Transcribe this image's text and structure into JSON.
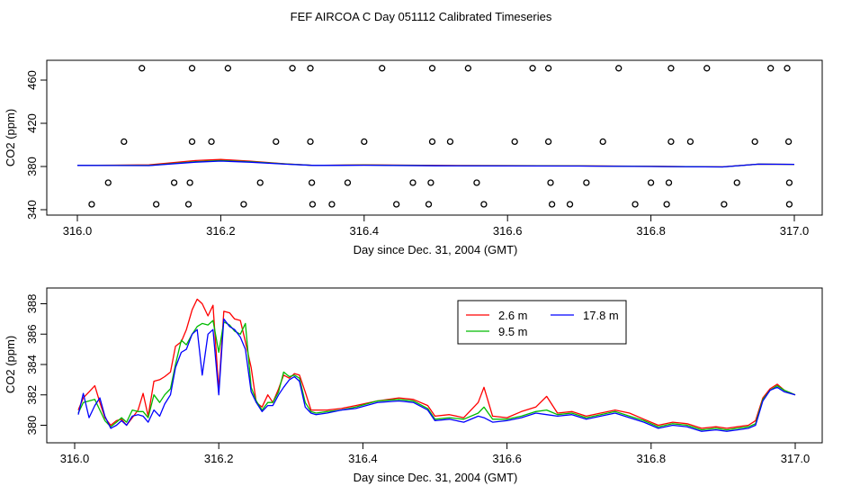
{
  "figure_title": "FEF AIRCOA C  Day 051112  Calibrated Timeseries",
  "chart_data": [
    {
      "type": "scatter+line",
      "title": "",
      "xlabel": "Day since Dec. 31, 2004 (GMT)",
      "ylabel": "CO2 (ppm)",
      "xlim": [
        316.0,
        317.0
      ],
      "ylim": [
        340,
        475
      ],
      "x_ticks": [
        316.0,
        316.2,
        316.4,
        316.6,
        316.8,
        317.0
      ],
      "x_tick_labels": [
        "316.0",
        "316.2",
        "316.4",
        "316.6",
        "316.8",
        "317.0"
      ],
      "y_ticks": [
        340,
        380,
        420,
        460
      ],
      "y_tick_labels": [
        "340",
        "380",
        "420",
        "460"
      ],
      "legend": false,
      "calibration_points": {
        "marker": "open-circle",
        "x": [
          316.09,
          316.16,
          316.21,
          316.3,
          316.325,
          316.425,
          316.495,
          316.545,
          316.635,
          316.657,
          316.755,
          316.828,
          316.878,
          316.967,
          316.99,
          316.065,
          316.16,
          316.187,
          316.277,
          316.325,
          316.4,
          316.495,
          316.52,
          316.61,
          316.657,
          316.733,
          316.828,
          316.855,
          316.945,
          316.992,
          316.043,
          316.135,
          316.157,
          316.255,
          316.327,
          316.377,
          316.468,
          316.493,
          316.557,
          316.66,
          316.71,
          316.8,
          316.825,
          316.92,
          316.993,
          316.02,
          316.11,
          316.155,
          316.232,
          316.328,
          316.355,
          316.445,
          316.49,
          316.567,
          316.662,
          316.687,
          316.778,
          316.822,
          316.902,
          316.993
        ],
        "y": [
          471,
          471,
          471,
          471,
          471,
          471,
          471,
          471,
          471,
          471,
          471,
          471,
          471,
          471,
          471,
          403,
          403,
          403,
          403,
          403,
          403,
          403,
          403,
          403,
          403,
          403,
          403,
          403,
          403,
          403,
          365,
          365,
          365,
          365,
          365,
          365,
          365,
          365,
          365,
          365,
          365,
          365,
          365,
          365,
          365,
          345,
          345,
          345,
          345,
          345,
          345,
          345,
          345,
          345,
          345,
          345,
          345,
          345,
          345,
          345
        ]
      },
      "series": [
        {
          "name": "2.6 m",
          "color": "#ff0000",
          "x": [
            316.0,
            316.1,
            316.165,
            316.2,
            316.24,
            316.29,
            316.33,
            316.4,
            316.5,
            316.6,
            316.7,
            316.8,
            316.9,
            316.95,
            317.0
          ],
          "values": [
            381.0,
            381.5,
            385.5,
            386.5,
            385.0,
            382.5,
            381.0,
            381.5,
            381.0,
            380.8,
            380.6,
            380.2,
            379.7,
            382.2,
            382.0
          ]
        },
        {
          "name": "9.5 m",
          "color": "#00bb00",
          "x": [
            316.0,
            316.1,
            316.165,
            316.2,
            316.24,
            316.29,
            316.33,
            316.4,
            316.5,
            316.6,
            316.7,
            316.8,
            316.9,
            316.95,
            317.0
          ],
          "values": [
            381.0,
            381.0,
            384.5,
            385.5,
            384.5,
            382.3,
            381.0,
            381.3,
            380.8,
            380.6,
            380.5,
            380.1,
            379.6,
            382.2,
            382.0
          ]
        },
        {
          "name": "17.8 m",
          "color": "#0000ff",
          "x": [
            316.0,
            316.1,
            316.165,
            316.2,
            316.24,
            316.29,
            316.33,
            316.4,
            316.5,
            316.6,
            316.7,
            316.8,
            316.9,
            316.95,
            317.0
          ],
          "values": [
            381.0,
            380.8,
            384.0,
            385.0,
            384.0,
            382.2,
            381.0,
            381.2,
            380.7,
            380.5,
            380.4,
            380.0,
            379.6,
            382.2,
            382.0
          ]
        }
      ]
    },
    {
      "type": "line",
      "title": "",
      "xlabel": "Day since Dec. 31, 2004 (GMT)",
      "ylabel": "CO2 (ppm)",
      "xlim": [
        316.0,
        317.0
      ],
      "ylim": [
        379.2,
        388.8
      ],
      "x_ticks": [
        316.0,
        316.2,
        316.4,
        316.6,
        316.8,
        317.0
      ],
      "x_tick_labels": [
        "316.0",
        "316.2",
        "316.4",
        "316.6",
        "316.8",
        "317.0"
      ],
      "y_ticks": [
        380,
        382,
        384,
        386,
        388
      ],
      "y_tick_labels": [
        "380",
        "382",
        "384",
        "386",
        "388"
      ],
      "legend": true,
      "legend_position": "top-right",
      "series": [
        {
          "name": "2.6 m",
          "color": "#ff0000",
          "x": [
            316.005,
            316.012,
            316.02,
            316.028,
            316.035,
            316.042,
            316.05,
            316.058,
            316.065,
            316.072,
            316.08,
            316.088,
            316.095,
            316.102,
            316.11,
            316.118,
            316.125,
            316.133,
            316.14,
            316.148,
            316.155,
            316.163,
            316.17,
            316.177,
            316.185,
            316.192,
            316.2,
            316.207,
            316.215,
            316.222,
            316.23,
            316.237,
            316.245,
            316.252,
            316.26,
            316.268,
            316.275,
            316.283,
            316.29,
            316.298,
            316.305,
            316.312,
            316.32,
            316.328,
            316.335,
            316.35,
            316.37,
            316.39,
            316.42,
            316.45,
            316.47,
            316.49,
            316.5,
            316.52,
            316.54,
            316.56,
            316.568,
            316.58,
            316.6,
            316.62,
            316.64,
            316.655,
            316.67,
            316.69,
            316.71,
            316.73,
            316.75,
            316.77,
            316.79,
            316.81,
            316.83,
            316.85,
            316.87,
            316.89,
            316.905,
            316.92,
            316.935,
            316.945,
            316.955,
            316.965,
            316.975,
            316.985,
            317.0
          ],
          "values": [
            381.0,
            381.8,
            382.2,
            382.6,
            381.5,
            380.5,
            380.0,
            380.3,
            380.4,
            380.0,
            380.5,
            381.0,
            382.1,
            380.6,
            382.9,
            383.0,
            383.2,
            383.5,
            385.2,
            385.5,
            386.3,
            387.6,
            388.3,
            388.0,
            387.2,
            387.9,
            382.3,
            387.5,
            387.4,
            387.0,
            386.9,
            385.5,
            383.8,
            381.5,
            381.2,
            382.0,
            381.5,
            382.4,
            383.3,
            383.1,
            383.4,
            383.3,
            382.2,
            381.0,
            381.0,
            381.0,
            381.1,
            381.3,
            381.6,
            381.8,
            381.7,
            381.3,
            380.6,
            380.7,
            380.5,
            381.5,
            382.5,
            380.6,
            380.5,
            380.9,
            381.2,
            381.9,
            380.8,
            380.9,
            380.6,
            380.8,
            381.0,
            380.8,
            380.4,
            380.0,
            380.2,
            380.1,
            379.8,
            379.9,
            379.8,
            379.9,
            380.0,
            380.3,
            381.8,
            382.4,
            382.7,
            382.3,
            382.0
          ]
        },
        {
          "name": "9.5 m",
          "color": "#00bb00",
          "x": [
            316.005,
            316.012,
            316.02,
            316.028,
            316.035,
            316.042,
            316.05,
            316.058,
            316.065,
            316.072,
            316.08,
            316.088,
            316.095,
            316.102,
            316.11,
            316.118,
            316.125,
            316.133,
            316.14,
            316.148,
            316.155,
            316.163,
            316.17,
            316.177,
            316.185,
            316.192,
            316.2,
            316.207,
            316.215,
            316.222,
            316.23,
            316.237,
            316.245,
            316.252,
            316.26,
            316.268,
            316.275,
            316.283,
            316.29,
            316.298,
            316.305,
            316.312,
            316.32,
            316.328,
            316.335,
            316.35,
            316.37,
            316.39,
            316.42,
            316.45,
            316.47,
            316.49,
            316.5,
            316.52,
            316.54,
            316.56,
            316.568,
            316.58,
            316.6,
            316.62,
            316.64,
            316.655,
            316.67,
            316.69,
            316.71,
            316.73,
            316.75,
            316.77,
            316.79,
            316.81,
            316.83,
            316.85,
            316.87,
            316.89,
            316.905,
            316.92,
            316.935,
            316.945,
            316.955,
            316.965,
            316.975,
            316.985,
            317.0
          ],
          "values": [
            380.8,
            381.5,
            381.6,
            381.7,
            381.0,
            380.3,
            379.9,
            380.2,
            380.5,
            380.2,
            381.0,
            380.9,
            380.9,
            380.5,
            382.0,
            381.5,
            382.0,
            382.4,
            384.0,
            385.6,
            385.3,
            386.0,
            386.5,
            386.7,
            386.6,
            386.9,
            384.8,
            386.8,
            386.6,
            386.2,
            386.0,
            386.7,
            382.5,
            381.6,
            381.0,
            381.5,
            381.5,
            382.2,
            383.5,
            383.2,
            383.3,
            383.1,
            381.5,
            380.9,
            380.8,
            380.9,
            381.0,
            381.2,
            381.6,
            381.7,
            381.6,
            381.1,
            380.4,
            380.5,
            380.4,
            380.8,
            381.2,
            380.4,
            380.4,
            380.6,
            380.9,
            381.0,
            380.7,
            380.8,
            380.5,
            380.7,
            380.9,
            380.6,
            380.3,
            379.9,
            380.1,
            380.0,
            379.7,
            379.8,
            379.7,
            379.8,
            379.9,
            380.1,
            381.7,
            382.3,
            382.6,
            382.3,
            382.0
          ]
        },
        {
          "name": "17.8 m",
          "color": "#0000ff",
          "x": [
            316.005,
            316.012,
            316.02,
            316.028,
            316.035,
            316.042,
            316.05,
            316.058,
            316.065,
            316.072,
            316.08,
            316.088,
            316.095,
            316.102,
            316.11,
            316.118,
            316.125,
            316.133,
            316.14,
            316.148,
            316.155,
            316.163,
            316.17,
            316.177,
            316.185,
            316.192,
            316.2,
            316.207,
            316.215,
            316.222,
            316.23,
            316.237,
            316.245,
            316.252,
            316.26,
            316.268,
            316.275,
            316.283,
            316.29,
            316.298,
            316.305,
            316.312,
            316.32,
            316.328,
            316.335,
            316.35,
            316.37,
            316.39,
            316.42,
            316.45,
            316.47,
            316.49,
            316.5,
            316.52,
            316.54,
            316.56,
            316.568,
            316.58,
            316.6,
            316.62,
            316.64,
            316.655,
            316.67,
            316.69,
            316.71,
            316.73,
            316.75,
            316.77,
            316.79,
            316.81,
            316.83,
            316.85,
            316.87,
            316.89,
            316.905,
            316.92,
            316.935,
            316.945,
            316.955,
            316.965,
            316.975,
            316.985,
            317.0
          ],
          "values": [
            380.7,
            382.1,
            380.5,
            381.3,
            381.8,
            380.6,
            379.8,
            380.0,
            380.3,
            380.0,
            380.6,
            380.7,
            380.6,
            380.2,
            381.0,
            380.6,
            381.4,
            382.0,
            383.8,
            384.8,
            385.0,
            386.0,
            386.3,
            383.3,
            386.0,
            386.3,
            382.0,
            387.0,
            386.5,
            386.3,
            385.8,
            385.0,
            382.2,
            381.5,
            380.9,
            381.3,
            381.3,
            382.0,
            382.5,
            383.0,
            383.2,
            382.9,
            381.2,
            380.8,
            380.7,
            380.8,
            381.0,
            381.1,
            381.5,
            381.6,
            381.5,
            381.0,
            380.3,
            380.4,
            380.2,
            380.6,
            380.5,
            380.2,
            380.3,
            380.5,
            380.8,
            380.7,
            380.6,
            380.7,
            380.4,
            380.6,
            380.8,
            380.5,
            380.2,
            379.8,
            380.0,
            379.9,
            379.6,
            379.7,
            379.6,
            379.7,
            379.8,
            380.0,
            381.6,
            382.3,
            382.5,
            382.2,
            382.0
          ]
        }
      ]
    }
  ]
}
